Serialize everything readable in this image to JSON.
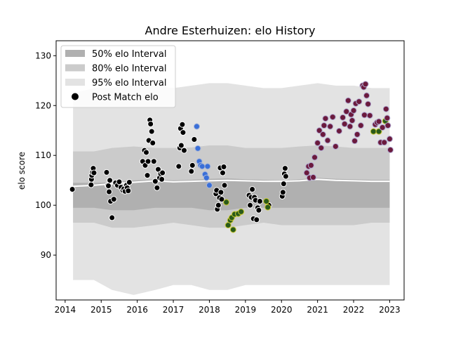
{
  "chart_data": {
    "type": "scatter",
    "title": "Andre Esterhuizen: elo History",
    "xlabel": "",
    "ylabel": "elo score",
    "xlim": [
      2013.75,
      2023.4
    ],
    "ylim": [
      81,
      133
    ],
    "x_ticks": [
      "2014",
      "2015",
      "2016",
      "2017",
      "2018",
      "2019",
      "2020",
      "2021",
      "2022",
      "2023"
    ],
    "y_ticks": [
      "90",
      "100",
      "110",
      "120",
      "130"
    ],
    "grid": false,
    "legend_position": "top-left",
    "legend": [
      {
        "label": "50% elo Interval",
        "color": "#b0b0b0"
      },
      {
        "label": "80% elo Interval",
        "color": "#cbcbcb"
      },
      {
        "label": "95% elo Interval",
        "color": "#e3e3e3"
      },
      {
        "label": "Post Match elo",
        "color": "#000000"
      }
    ],
    "colors": {
      "band95": "#e3e3e3",
      "band80": "#cbcbcb",
      "band50": "#b0b0b0",
      "median": "#ffffff",
      "dark_line": "#7a7a7a"
    },
    "bands": [
      {
        "x": 2014.22,
        "lo95": 85,
        "lo80": 96.5,
        "lo50": 99.5,
        "median": 103.8,
        "hi50": 104.5,
        "hi80": 110.8,
        "hi95": 122.5
      },
      {
        "x": 2014.8,
        "lo95": 85,
        "lo80": 96.5,
        "lo50": 99.5,
        "median": 104.0,
        "hi50": 104.5,
        "hi80": 110.8,
        "hi95": 123.5
      },
      {
        "x": 2015.3,
        "lo95": 83,
        "lo80": 95.5,
        "lo50": 99.0,
        "median": 104.3,
        "hi50": 104.6,
        "hi80": 111.5,
        "hi95": 123.5
      },
      {
        "x": 2015.9,
        "lo95": 82,
        "lo80": 95.5,
        "lo50": 99.0,
        "median": 104.6,
        "hi50": 105.0,
        "hi80": 111.8,
        "hi95": 124.5
      },
      {
        "x": 2016.5,
        "lo95": 83,
        "lo80": 96.0,
        "lo50": 99.5,
        "median": 104.9,
        "hi50": 105.2,
        "hi80": 111.5,
        "hi95": 124.0
      },
      {
        "x": 2017.0,
        "lo95": 84,
        "lo80": 96.5,
        "lo50": 99.5,
        "median": 104.7,
        "hi50": 105.0,
        "hi80": 111.5,
        "hi95": 123.5
      },
      {
        "x": 2017.5,
        "lo95": 84,
        "lo80": 96.0,
        "lo50": 99.5,
        "median": 104.8,
        "hi50": 105.1,
        "hi80": 111.6,
        "hi95": 124.0
      },
      {
        "x": 2018.0,
        "lo95": 83,
        "lo80": 95.5,
        "lo50": 99.0,
        "median": 104.9,
        "hi50": 105.3,
        "hi80": 112.0,
        "hi95": 124.5
      },
      {
        "x": 2018.5,
        "lo95": 83,
        "lo80": 95.5,
        "lo50": 99.0,
        "median": 105.0,
        "hi50": 105.4,
        "hi80": 112.0,
        "hi95": 124.5
      },
      {
        "x": 2019.0,
        "lo95": 84,
        "lo80": 96.0,
        "lo50": 99.5,
        "median": 104.9,
        "hi50": 105.2,
        "hi80": 111.5,
        "hi95": 124.0
      },
      {
        "x": 2019.5,
        "lo95": 84,
        "lo80": 96.5,
        "lo50": 99.5,
        "median": 104.8,
        "hi50": 105.1,
        "hi80": 111.5,
        "hi95": 123.5
      },
      {
        "x": 2020.0,
        "lo95": 84,
        "lo80": 96.0,
        "lo50": 99.5,
        "median": 104.8,
        "hi50": 105.0,
        "hi80": 111.5,
        "hi95": 123.5
      },
      {
        "x": 2020.5,
        "lo95": 84,
        "lo80": 96.0,
        "lo50": 99.5,
        "median": 104.9,
        "hi50": 105.2,
        "hi80": 111.8,
        "hi95": 124.0
      },
      {
        "x": 2021.0,
        "lo95": 84,
        "lo80": 96.0,
        "lo50": 99.5,
        "median": 105.2,
        "hi50": 105.5,
        "hi80": 112.0,
        "hi95": 124.5
      },
      {
        "x": 2021.5,
        "lo95": 84,
        "lo80": 96.0,
        "lo50": 99.5,
        "median": 105.0,
        "hi50": 105.3,
        "hi80": 111.8,
        "hi95": 124.0
      },
      {
        "x": 2022.0,
        "lo95": 84,
        "lo80": 96.0,
        "lo50": 99.5,
        "median": 104.9,
        "hi50": 105.2,
        "hi80": 111.5,
        "hi95": 124.0
      },
      {
        "x": 2022.5,
        "lo95": 84,
        "lo80": 96.5,
        "lo50": 99.5,
        "median": 104.8,
        "hi50": 105.1,
        "hi80": 111.5,
        "hi95": 123.5
      },
      {
        "x": 2023.0,
        "lo95": 84,
        "lo80": 96.5,
        "lo50": 99.5,
        "median": 104.8,
        "hi50": 105.1,
        "hi80": 111.5,
        "hi95": 123.5
      }
    ],
    "series": [
      {
        "color": "#000000",
        "edge": "#ffffff",
        "points": [
          [
            2014.2,
            103.2
          ],
          [
            2014.72,
            104.1
          ],
          [
            2014.73,
            105.2
          ],
          [
            2014.74,
            106.0
          ],
          [
            2014.76,
            106.6
          ],
          [
            2014.78,
            107.4
          ],
          [
            2014.8,
            106.5
          ],
          [
            2015.15,
            106.6
          ],
          [
            2015.18,
            104.0
          ],
          [
            2015.2,
            103.9
          ],
          [
            2015.22,
            102.7
          ],
          [
            2015.24,
            105.0
          ],
          [
            2015.26,
            100.8
          ],
          [
            2015.3,
            97.5
          ],
          [
            2015.35,
            101.2
          ],
          [
            2015.4,
            104.5
          ],
          [
            2015.45,
            104.0
          ],
          [
            2015.5,
            104.7
          ],
          [
            2015.55,
            103.6
          ],
          [
            2015.6,
            103.0
          ],
          [
            2015.63,
            103.3
          ],
          [
            2015.66,
            102.8
          ],
          [
            2015.7,
            104.0
          ],
          [
            2015.72,
            103.5
          ],
          [
            2015.75,
            102.9
          ],
          [
            2015.78,
            104.6
          ],
          [
            2016.15,
            108.8
          ],
          [
            2016.2,
            111.0
          ],
          [
            2016.22,
            108.0
          ],
          [
            2016.25,
            110.6
          ],
          [
            2016.28,
            106.0
          ],
          [
            2016.3,
            108.8
          ],
          [
            2016.32,
            113.0
          ],
          [
            2016.35,
            117.1
          ],
          [
            2016.37,
            116.3
          ],
          [
            2016.4,
            114.8
          ],
          [
            2016.43,
            112.5
          ],
          [
            2016.46,
            108.8
          ],
          [
            2016.5,
            104.8
          ],
          [
            2016.55,
            103.5
          ],
          [
            2016.58,
            107.2
          ],
          [
            2016.62,
            105.5
          ],
          [
            2016.65,
            106.3
          ],
          [
            2016.68,
            105.2
          ],
          [
            2016.7,
            106.5
          ],
          [
            2017.15,
            107.8
          ],
          [
            2017.18,
            111.5
          ],
          [
            2017.2,
            115.4
          ],
          [
            2017.22,
            112.0
          ],
          [
            2017.25,
            116.2
          ],
          [
            2017.27,
            114.6
          ],
          [
            2017.3,
            111.0
          ],
          [
            2017.5,
            106.8
          ],
          [
            2017.53,
            108.0
          ],
          [
            2017.58,
            113.2
          ],
          [
            2018.18,
            102.3
          ],
          [
            2018.2,
            103.0
          ],
          [
            2018.22,
            99.2
          ],
          [
            2018.25,
            100.0
          ],
          [
            2018.28,
            101.5
          ],
          [
            2018.3,
            107.5
          ],
          [
            2018.32,
            102.6
          ],
          [
            2018.34,
            101.2
          ],
          [
            2018.37,
            106.5
          ],
          [
            2018.4,
            107.7
          ],
          [
            2018.42,
            104.0
          ],
          [
            2019.1,
            102.0
          ],
          [
            2019.13,
            100.0
          ],
          [
            2019.16,
            101.6
          ],
          [
            2019.19,
            103.2
          ],
          [
            2019.22,
            97.3
          ],
          [
            2019.25,
            101.6
          ],
          [
            2019.28,
            101.0
          ],
          [
            2019.31,
            97.1
          ],
          [
            2019.34,
            99.5
          ],
          [
            2019.37,
            99.0
          ],
          [
            2019.4,
            100.8
          ],
          [
            2019.65,
            100.0
          ],
          [
            2020.02,
            101.8
          ],
          [
            2020.04,
            102.6
          ],
          [
            2020.06,
            104.3
          ],
          [
            2020.08,
            106.3
          ],
          [
            2020.1,
            107.4
          ],
          [
            2020.12,
            105.8
          ]
        ]
      },
      {
        "color": "#3a6fd8",
        "edge": "#aab8d8",
        "points": [
          [
            2017.65,
            115.8
          ],
          [
            2017.68,
            111.4
          ],
          [
            2017.72,
            108.8
          ],
          [
            2017.76,
            108.0
          ],
          [
            2017.8,
            107.8
          ],
          [
            2017.88,
            106.2
          ],
          [
            2017.92,
            105.5
          ],
          [
            2017.95,
            107.8
          ],
          [
            2018.0,
            104.0
          ]
        ]
      },
      {
        "color": "#2a5a1a",
        "edge": "#c9c830",
        "points": [
          [
            2018.47,
            100.6
          ],
          [
            2018.52,
            96.0
          ],
          [
            2018.58,
            97.0
          ],
          [
            2018.62,
            97.5
          ],
          [
            2018.66,
            95.1
          ],
          [
            2018.7,
            98.2
          ],
          [
            2018.8,
            98.3
          ],
          [
            2018.88,
            98.7
          ],
          [
            2019.58,
            100.8
          ],
          [
            2019.62,
            99.6
          ],
          [
            2022.55,
            114.8
          ],
          [
            2022.7,
            114.8
          ],
          [
            2022.88,
            116.9
          ]
        ]
      },
      {
        "color": "#6b1a3d",
        "edge": "#b0a8d0",
        "points": [
          [
            2020.7,
            106.5
          ],
          [
            2020.75,
            107.8
          ],
          [
            2020.78,
            105.5
          ],
          [
            2020.82,
            108.0
          ],
          [
            2020.88,
            105.6
          ],
          [
            2020.92,
            109.6
          ],
          [
            2021.0,
            112.5
          ],
          [
            2021.05,
            115.0
          ],
          [
            2021.1,
            111.5
          ],
          [
            2021.15,
            114.2
          ],
          [
            2021.18,
            116.0
          ],
          [
            2021.22,
            117.4
          ],
          [
            2021.28,
            113.0
          ],
          [
            2021.35,
            115.8
          ],
          [
            2021.42,
            117.7
          ],
          [
            2021.5,
            111.8
          ],
          [
            2021.6,
            114.9
          ],
          [
            2021.7,
            117.6
          ],
          [
            2021.75,
            116.3
          ],
          [
            2021.8,
            118.8
          ],
          [
            2021.85,
            121.0
          ],
          [
            2021.9,
            115.8
          ],
          [
            2021.93,
            118.2
          ],
          [
            2021.96,
            117.0
          ],
          [
            2022.0,
            119.0
          ],
          [
            2022.03,
            112.9
          ],
          [
            2022.06,
            120.4
          ],
          [
            2022.1,
            114.2
          ],
          [
            2022.15,
            120.8
          ],
          [
            2022.2,
            116.0
          ],
          [
            2022.25,
            124.0
          ],
          [
            2022.28,
            123.7
          ],
          [
            2022.3,
            118.1
          ],
          [
            2022.33,
            124.3
          ],
          [
            2022.36,
            122.0
          ],
          [
            2022.4,
            120.3
          ],
          [
            2022.45,
            118.0
          ],
          [
            2022.6,
            116.2
          ],
          [
            2022.65,
            116.6
          ],
          [
            2022.7,
            116.8
          ],
          [
            2022.75,
            112.6
          ],
          [
            2022.8,
            115.6
          ],
          [
            2022.85,
            112.6
          ],
          [
            2022.9,
            119.3
          ],
          [
            2022.93,
            117.5
          ],
          [
            2022.95,
            116.0
          ],
          [
            2023.0,
            113.3
          ],
          [
            2023.02,
            111.1
          ]
        ]
      }
    ]
  }
}
